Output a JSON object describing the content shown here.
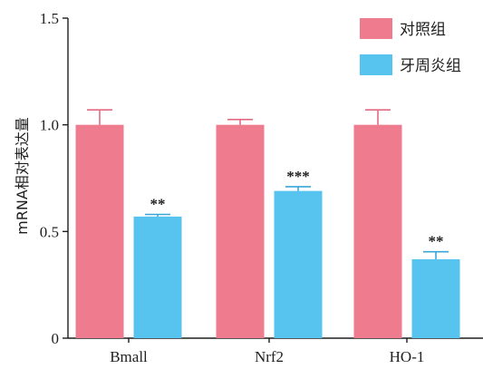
{
  "chart_data": {
    "type": "bar",
    "ylabel": "mRNA相对表达量",
    "ylim": [
      0,
      1.5
    ],
    "yticks": [
      "0",
      "0.5",
      "1.0",
      "1.5"
    ],
    "categories": [
      "Bmall",
      "Nrf2",
      "HO-1"
    ],
    "series": [
      {
        "name": "对照组",
        "color": "#ef7b8f",
        "values": [
          1.0,
          1.0,
          1.0
        ],
        "errors": [
          0.07,
          0.025,
          0.07
        ],
        "sig": [
          "",
          "",
          ""
        ]
      },
      {
        "name": "牙周炎组",
        "color": "#57c3ef",
        "values": [
          0.57,
          0.69,
          0.37
        ],
        "errors": [
          0.01,
          0.02,
          0.035
        ],
        "sig": [
          "**",
          "***",
          "**"
        ]
      }
    ],
    "legend": "top-right"
  }
}
